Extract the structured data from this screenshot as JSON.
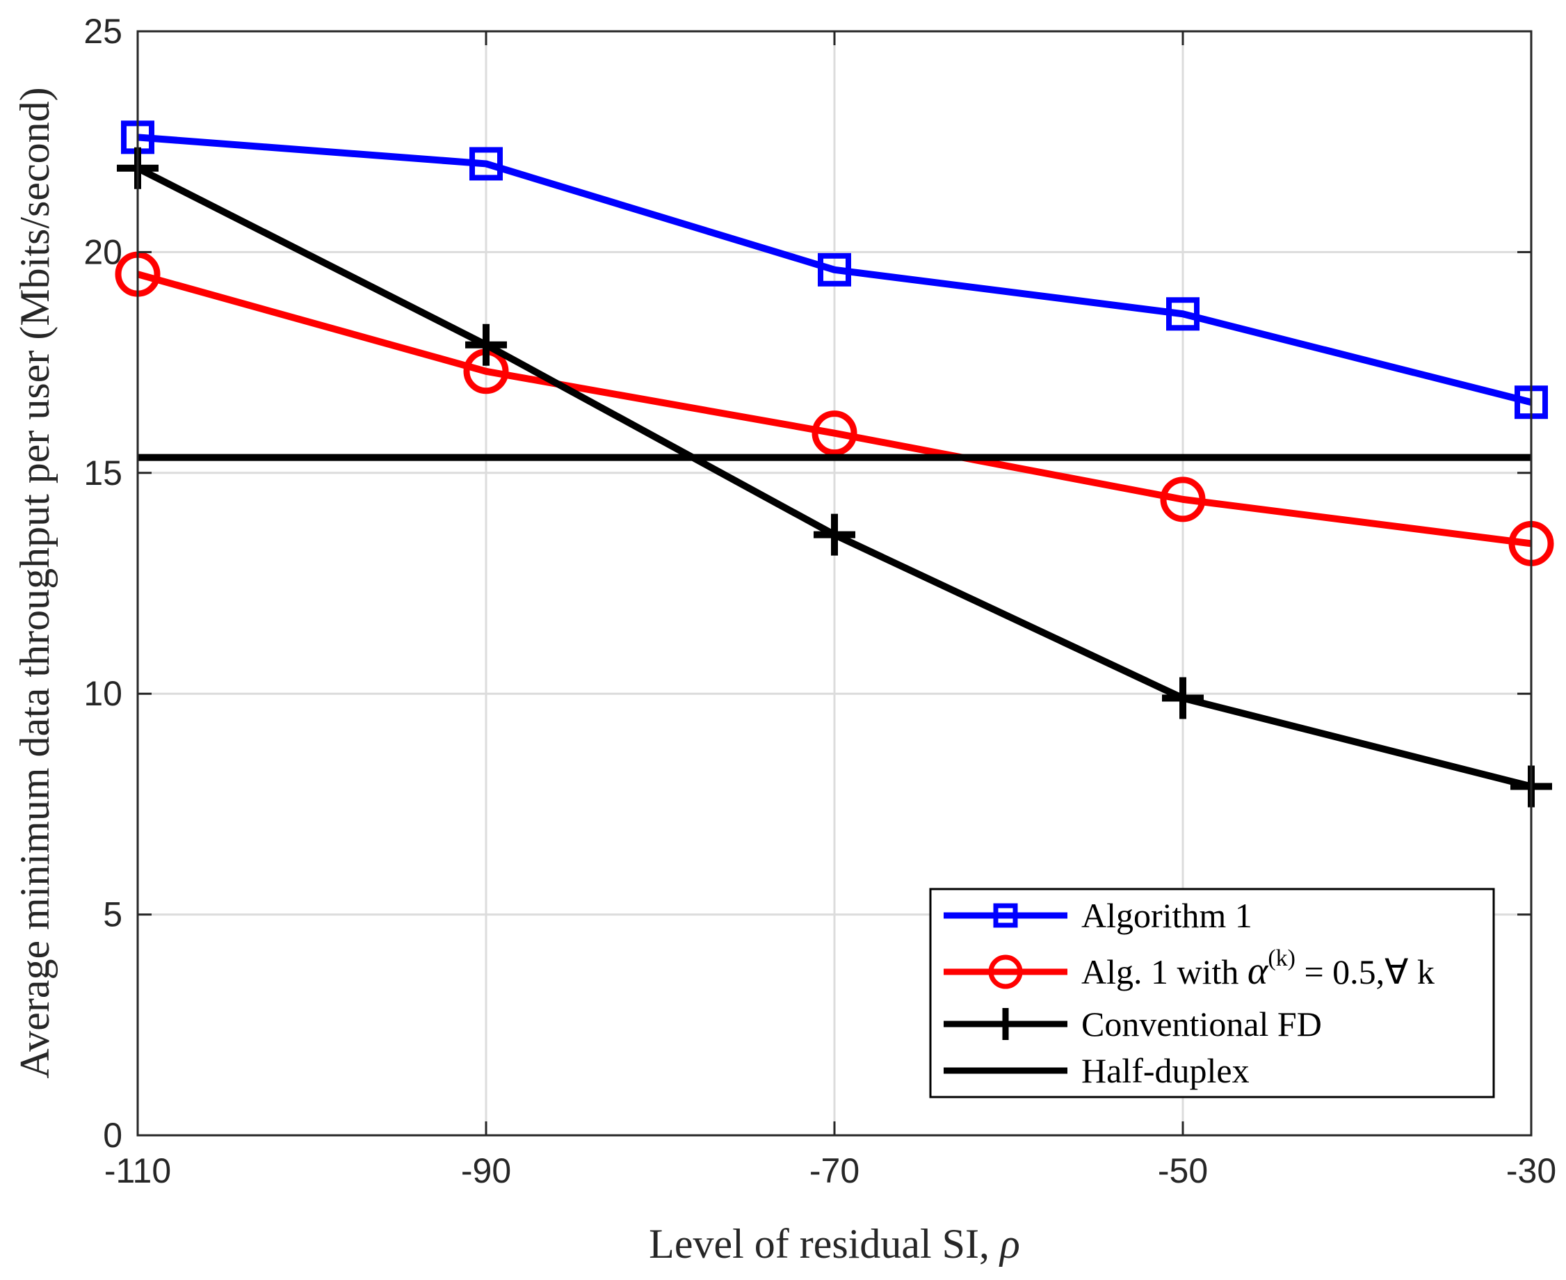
{
  "chart_data": {
    "type": "line",
    "title": "",
    "xlabel": "Level of residual SI, ",
    "xlabel_symbol": "ρ",
    "ylabel": "Average minimum data throughput per user (Mbits/second)",
    "x": [
      -110,
      -90,
      -70,
      -50,
      -30
    ],
    "xlim": [
      -110,
      -30
    ],
    "ylim": [
      0,
      25
    ],
    "xticks": [
      -110,
      -90,
      -70,
      -50,
      -30
    ],
    "xtick_labels": [
      "-110",
      "-90",
      "-70",
      "-50",
      "-30"
    ],
    "yticks": [
      0,
      5,
      10,
      15,
      20,
      25
    ],
    "ytick_labels": [
      "0",
      "5",
      "10",
      "15",
      "20",
      "25"
    ],
    "grid": true,
    "legend_position": "bottom-right",
    "series": [
      {
        "name": "Algorithm 1",
        "color": "#0000ff",
        "marker": "square",
        "values": [
          22.6,
          22.0,
          19.6,
          18.6,
          16.6
        ]
      },
      {
        "name": "Alg. 1 with α(k) = 0.5,∀ k",
        "legend_parts": {
          "prefix": "Alg. 1 with ",
          "symbol": "α",
          "superscript": "(k)",
          "suffix": " = 0.5,∀ k"
        },
        "color": "#ff0000",
        "marker": "circle",
        "values": [
          19.5,
          17.3,
          15.9,
          14.4,
          13.4
        ]
      },
      {
        "name": "Conventional FD",
        "color": "#000000",
        "marker": "plus",
        "values": [
          21.9,
          17.9,
          13.6,
          9.9,
          7.9
        ]
      },
      {
        "name": "Half-duplex",
        "color": "#000000",
        "marker": "none",
        "values": [
          15.35,
          15.35,
          15.35,
          15.35,
          15.35
        ]
      }
    ]
  }
}
